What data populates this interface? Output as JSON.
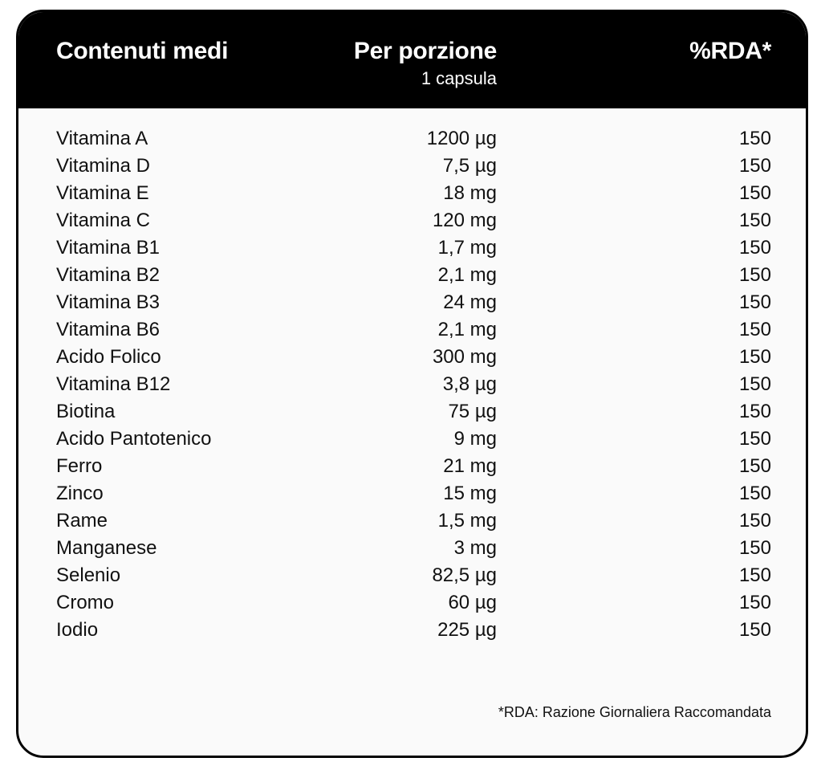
{
  "header": {
    "col_name": "Contenuti medi",
    "col_amount": "Per porzione",
    "col_amount_sub": "1 capsula",
    "col_rda": "%RDA*"
  },
  "rows": [
    {
      "name": "Vitamina A",
      "amount": "1200 µg",
      "rda": "150"
    },
    {
      "name": "Vitamina D",
      "amount": "7,5 µg",
      "rda": "150"
    },
    {
      "name": "Vitamina E",
      "amount": "18 mg",
      "rda": "150"
    },
    {
      "name": "Vitamina C",
      "amount": "120 mg",
      "rda": "150"
    },
    {
      "name": "Vitamina B1",
      "amount": "1,7 mg",
      "rda": "150"
    },
    {
      "name": "Vitamina B2",
      "amount": "2,1 mg",
      "rda": "150"
    },
    {
      "name": "Vitamina B3",
      "amount": "24 mg",
      "rda": "150"
    },
    {
      "name": "Vitamina B6",
      "amount": "2,1 mg",
      "rda": "150"
    },
    {
      "name": "Acido Folico",
      "amount": "300 mg",
      "rda": "150"
    },
    {
      "name": "Vitamina B12",
      "amount": "3,8 µg",
      "rda": "150"
    },
    {
      "name": "Biotina",
      "amount": "75 µg",
      "rda": "150"
    },
    {
      "name": "Acido Pantotenico",
      "amount": "9 mg",
      "rda": "150"
    },
    {
      "name": "Ferro",
      "amount": "21 mg",
      "rda": "150"
    },
    {
      "name": "Zinco",
      "amount": "15 mg",
      "rda": "150"
    },
    {
      "name": "Rame",
      "amount": "1,5 mg",
      "rda": "150"
    },
    {
      "name": "Manganese",
      "amount": "3 mg",
      "rda": "150"
    },
    {
      "name": "Selenio",
      "amount": "82,5 µg",
      "rda": "150"
    },
    {
      "name": "Cromo",
      "amount": "60 µg",
      "rda": "150"
    },
    {
      "name": "Iodio",
      "amount": "225 µg",
      "rda": "150"
    }
  ],
  "footnote": "*RDA: Razione Giornaliera Raccomandata"
}
